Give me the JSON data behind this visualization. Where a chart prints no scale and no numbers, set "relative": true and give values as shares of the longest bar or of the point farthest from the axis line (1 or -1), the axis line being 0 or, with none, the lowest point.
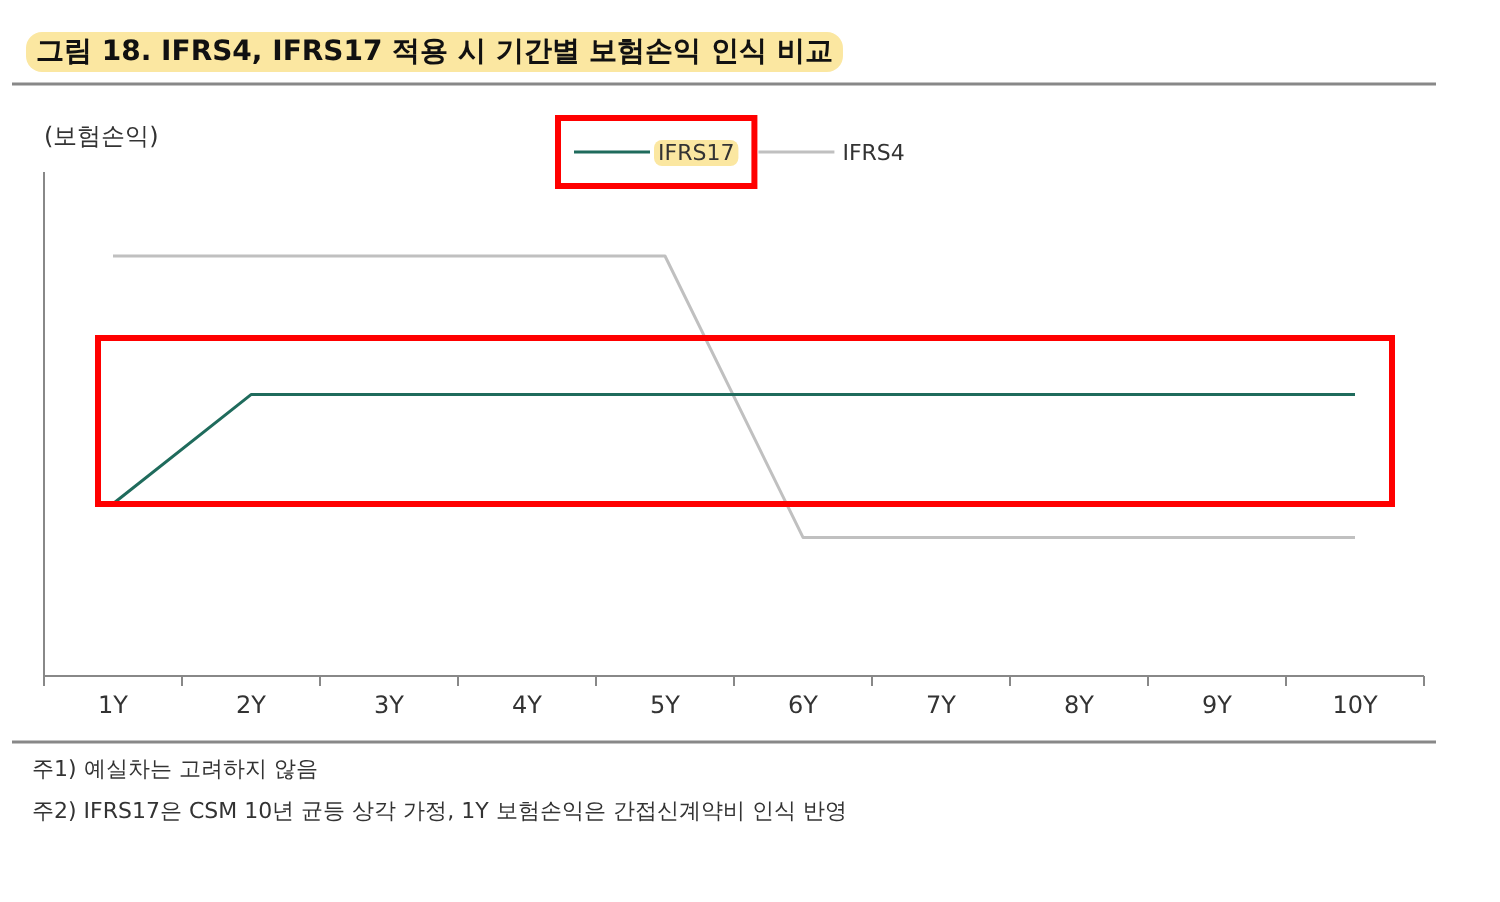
{
  "chart_data": {
    "type": "line",
    "title": "그림 18. IFRS4, IFRS17 적용 시 기간별 보험손익 인식 비교",
    "ylabel": "(보험손익)",
    "relative": true,
    "legend": "top",
    "grid": false,
    "marker": "none",
    "line_style": "solid",
    "categories": [
      "1Y",
      "2Y",
      "3Y",
      "4Y",
      "5Y",
      "6Y",
      "7Y",
      "8Y",
      "9Y",
      "10Y"
    ],
    "series": [
      {
        "name": "IFRS17",
        "color": "#1f6b5c",
        "values": [
          0.41,
          0.67,
          0.67,
          0.67,
          0.67,
          0.67,
          0.67,
          0.67,
          0.67,
          0.67
        ]
      },
      {
        "name": "IFRS4",
        "color": "#c0c0c0",
        "values": [
          1,
          1,
          1,
          1,
          1,
          0.33,
          0.33,
          0.33,
          0.33,
          0.33
        ]
      }
    ],
    "annotations": [
      "주1) 예실차는 고려하지 않음",
      "주2) IFRS17은 CSM 10년 균등 상각 가정, 1Y 보험손익은 간접신계약비 인식 반영"
    ]
  }
}
